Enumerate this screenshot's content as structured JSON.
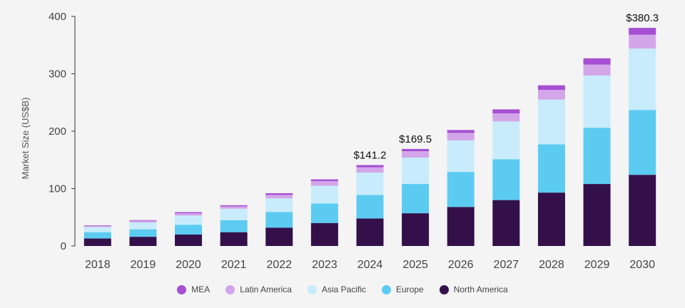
{
  "chart_data": {
    "type": "bar",
    "stacked": true,
    "ylabel": "Market Size (US$B)",
    "xlabel": "",
    "ylim": [
      0,
      400
    ],
    "yticks": [
      0,
      100,
      200,
      300,
      400
    ],
    "categories": [
      "2018",
      "2019",
      "2020",
      "2021",
      "2022",
      "2023",
      "2024",
      "2025",
      "2026",
      "2027",
      "2028",
      "2029",
      "2030"
    ],
    "series": [
      {
        "name": "North America",
        "color": "#33104a",
        "values": [
          13,
          16,
          20,
          24,
          32,
          40,
          48,
          57,
          68,
          80,
          93,
          108,
          124
        ]
      },
      {
        "name": "Europe",
        "color": "#5ccbf2",
        "values": [
          11,
          13,
          17,
          21,
          27,
          34,
          41,
          51,
          61,
          71,
          84,
          98,
          113
        ]
      },
      {
        "name": "Asia Pacific",
        "color": "#c8ecfb",
        "values": [
          9,
          12,
          16,
          20,
          24,
          31,
          39,
          46,
          55,
          66,
          78,
          91,
          107
        ]
      },
      {
        "name": "Latin America",
        "color": "#d3a6ea",
        "values": [
          2,
          3,
          4,
          4,
          6,
          8,
          9,
          11,
          13,
          14,
          17,
          19,
          24
        ]
      },
      {
        "name": "MEA",
        "color": "#a64fd3",
        "values": [
          1,
          1,
          2,
          2,
          3,
          3,
          4,
          4,
          5,
          7,
          8,
          11,
          12
        ]
      }
    ],
    "data_labels": [
      {
        "category": "2024",
        "text": "$141.2"
      },
      {
        "category": "2025",
        "text": "$169.5"
      },
      {
        "category": "2030",
        "text": "$380.3"
      }
    ],
    "legend_order": [
      "MEA",
      "Latin America",
      "Asia Pacific",
      "Europe",
      "North America"
    ],
    "legend_position": "bottom",
    "grid": false
  }
}
